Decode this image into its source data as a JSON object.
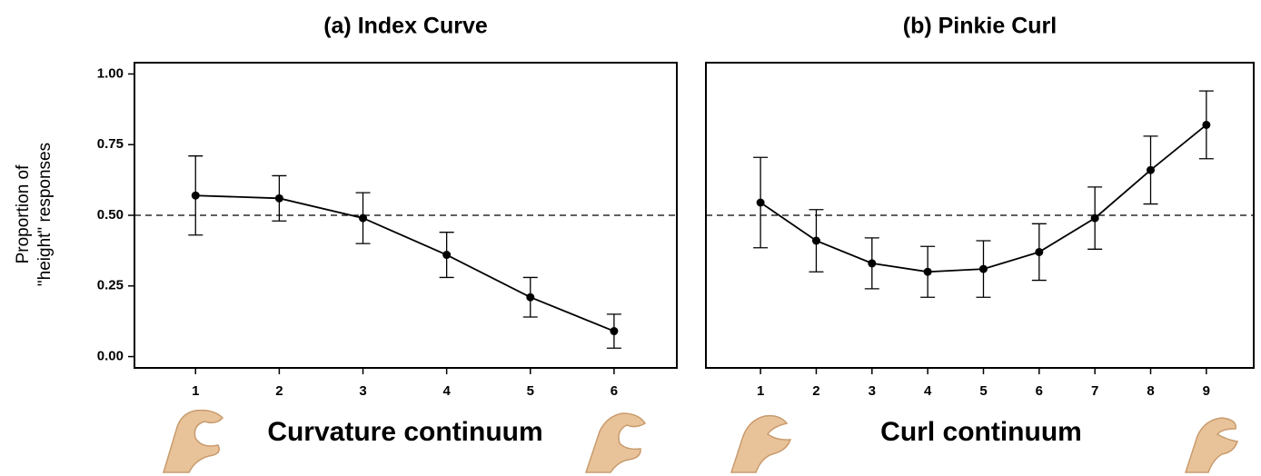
{
  "chart_data": [
    {
      "type": "line",
      "title": "(a) Index Curve",
      "xlabel": "Curvature continuum",
      "ylabel": [
        "Proportion of",
        "\"height\" responses"
      ],
      "x": [
        1,
        2,
        3,
        4,
        5,
        6
      ],
      "values": [
        0.57,
        0.56,
        0.49,
        0.36,
        0.21,
        0.09
      ],
      "errors": [
        0.14,
        0.08,
        0.09,
        0.08,
        0.07,
        0.06
      ],
      "color": "#000000",
      "xlim": [
        0.27,
        6.75
      ],
      "xticks": [
        1,
        2,
        3,
        4,
        5,
        6
      ],
      "ylim": [
        -0.04,
        1.04
      ],
      "yticks": [
        {
          "value": 0,
          "label": "0.00"
        },
        {
          "value": 0.25,
          "label": "0.25"
        },
        {
          "value": 0.5,
          "label": "0.50"
        },
        {
          "value": 0.75,
          "label": "0.75"
        },
        {
          "value": 1,
          "label": "1.00"
        }
      ],
      "reference_line": 0.5
    },
    {
      "type": "line",
      "title": "(b) Pinkie Curl",
      "xlabel": "Curl continuum",
      "x": [
        1,
        2,
        3,
        4,
        5,
        6,
        7,
        8,
        9
      ],
      "values": [
        0.545,
        0.41,
        0.33,
        0.3,
        0.31,
        0.37,
        0.49,
        0.66,
        0.82
      ],
      "errors": [
        0.16,
        0.11,
        0.09,
        0.09,
        0.1,
        0.1,
        0.11,
        0.12,
        0.12
      ],
      "color": "#000000",
      "xlim": [
        0.02,
        9.85
      ],
      "xticks": [
        1,
        2,
        3,
        4,
        5,
        6,
        7,
        8,
        9
      ],
      "ylim": [
        -0.04,
        1.04
      ],
      "reference_line": 0.5
    }
  ]
}
